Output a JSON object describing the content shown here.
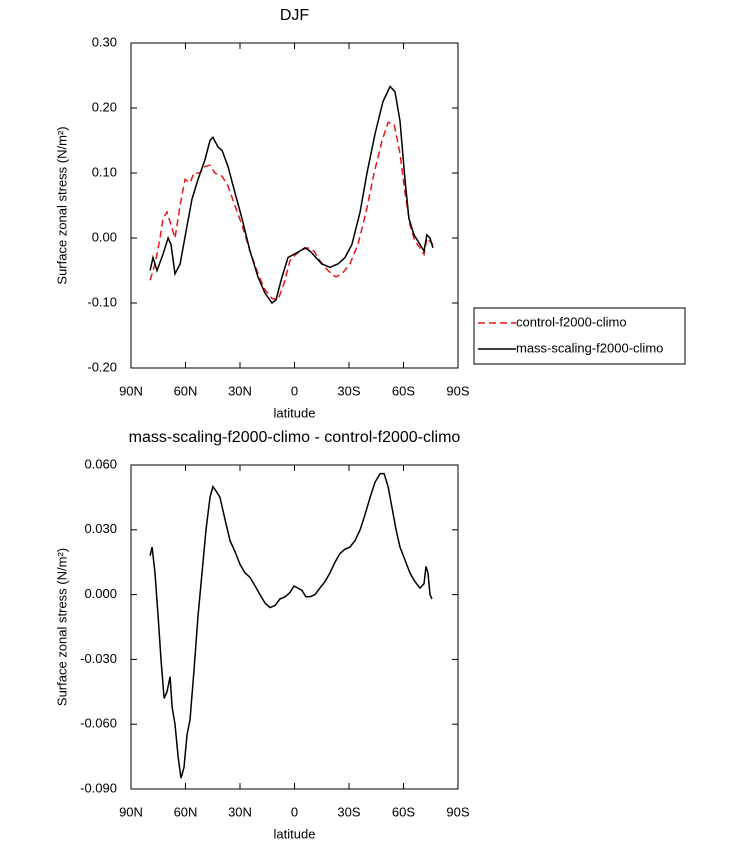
{
  "chart_data": [
    {
      "type": "line",
      "title": "DJF",
      "xlabel": "latitude",
      "ylabel": "Surface zonal stress (N/m²)",
      "xlim": [
        90,
        -90
      ],
      "ylim": [
        -0.2,
        0.3
      ],
      "xticks": [
        {
          "value": 90,
          "label": "90N"
        },
        {
          "value": 60,
          "label": "60N"
        },
        {
          "value": 30,
          "label": "30N"
        },
        0,
        {
          "value": -30,
          "label": "30S"
        },
        {
          "value": -60,
          "label": "60S"
        },
        {
          "value": -90,
          "label": "90S"
        }
      ],
      "yticks": [
        {
          "value": -0.2,
          "label": "-0.20"
        },
        {
          "value": -0.1,
          "label": "-0.10"
        },
        {
          "value": 0,
          "label": "0.00"
        },
        {
          "value": 0.1,
          "label": "0.10"
        },
        {
          "value": 0.2,
          "label": "0.20"
        },
        {
          "value": 0.3,
          "label": "0.30"
        }
      ],
      "legend": "right",
      "series": [
        {
          "name": "control-f2000-climo",
          "color": "#e8171f",
          "dash": true,
          "x": [
            79.5,
            76.8,
            74.0,
            72.4,
            70.2,
            68.0,
            65.8,
            63.0,
            60.3,
            57.5,
            55.3,
            52.0,
            49.3,
            46.5,
            43.8,
            39.9,
            36.6,
            32.8,
            28.9,
            24.5,
            20.1,
            16.2,
            12.4,
            9.1,
            5.8,
            2.5,
            -0.8,
            -4.1,
            -7.4,
            -10.7,
            -14.0,
            -18.4,
            -22.8,
            -26.1,
            -30.5,
            -34.9,
            -39.4,
            -43.8,
            -48.2,
            -51.5,
            -54.8,
            -58.1,
            -60.8,
            -63.6,
            -66.3,
            -69.1,
            -71.3,
            -72.9,
            -74.6,
            -76.2
          ],
          "values": [
            -0.065,
            -0.04,
            0.0,
            0.03,
            0.04,
            0.02,
            0.0,
            0.05,
            0.09,
            0.085,
            0.1,
            0.1,
            0.11,
            0.112,
            0.1,
            0.095,
            0.08,
            0.05,
            0.02,
            -0.02,
            -0.055,
            -0.08,
            -0.093,
            -0.095,
            -0.07,
            -0.035,
            -0.025,
            -0.018,
            -0.015,
            -0.02,
            -0.035,
            -0.05,
            -0.06,
            -0.055,
            -0.04,
            -0.01,
            0.04,
            0.1,
            0.15,
            0.178,
            0.175,
            0.13,
            0.07,
            0.02,
            -0.005,
            -0.015,
            -0.025,
            0.0,
            -0.005,
            -0.01
          ]
        },
        {
          "name": "mass-scaling-f2000-climo",
          "color": "#000000",
          "dash": false,
          "x": [
            79.5,
            77.9,
            75.7,
            72.4,
            69.6,
            68.0,
            65.8,
            63.0,
            59.7,
            56.4,
            53.1,
            49.3,
            46.5,
            44.9,
            42.1,
            39.9,
            36.6,
            32.8,
            28.9,
            24.5,
            20.1,
            16.2,
            12.4,
            10.2,
            6.9,
            3.6,
            0.3,
            -3.0,
            -5.8,
            -8.5,
            -11.8,
            -15.1,
            -19.5,
            -23.9,
            -27.8,
            -31.6,
            -36.1,
            -39.9,
            -44.3,
            -48.7,
            -52.6,
            -55.3,
            -58.1,
            -60.8,
            -63.0,
            -65.8,
            -69.1,
            -71.3,
            -72.9,
            -74.6,
            -76.2
          ],
          "values": [
            -0.05,
            -0.03,
            -0.05,
            -0.025,
            0.0,
            -0.01,
            -0.055,
            -0.04,
            0.01,
            0.06,
            0.09,
            0.12,
            0.15,
            0.155,
            0.14,
            0.135,
            0.11,
            0.07,
            0.03,
            -0.02,
            -0.06,
            -0.085,
            -0.1,
            -0.095,
            -0.06,
            -0.03,
            -0.025,
            -0.02,
            -0.015,
            -0.02,
            -0.03,
            -0.04,
            -0.045,
            -0.04,
            -0.03,
            -0.01,
            0.04,
            0.1,
            0.16,
            0.21,
            0.233,
            0.225,
            0.18,
            0.09,
            0.03,
            0.005,
            -0.01,
            -0.02,
            0.005,
            0.0,
            -0.015
          ]
        }
      ]
    },
    {
      "type": "line",
      "title": "mass-scaling-f2000-climo - control-f2000-climo",
      "xlabel": "latitude",
      "ylabel": "Surface zonal stress (N/m²)",
      "xlim": [
        90,
        -90
      ],
      "ylim": [
        -0.09,
        0.06
      ],
      "xticks": [
        {
          "value": 90,
          "label": "90N"
        },
        {
          "value": 60,
          "label": "60N"
        },
        {
          "value": 30,
          "label": "30N"
        },
        0,
        {
          "value": -30,
          "label": "30S"
        },
        {
          "value": -60,
          "label": "60S"
        },
        {
          "value": -90,
          "label": "90S"
        }
      ],
      "yticks": [
        {
          "value": -0.09,
          "label": "-0.090"
        },
        {
          "value": -0.06,
          "label": "-0.060"
        },
        {
          "value": -0.03,
          "label": "-0.030"
        },
        {
          "value": 0,
          "label": "0.000"
        },
        {
          "value": 0.03,
          "label": "0.030"
        },
        {
          "value": 0.06,
          "label": "0.060"
        }
      ],
      "series": [
        {
          "color": "#000000",
          "dash": false,
          "x": [
            79.5,
            78.4,
            76.8,
            75.1,
            73.5,
            71.8,
            70.2,
            68.5,
            67.4,
            65.8,
            64.1,
            62.5,
            60.8,
            59.2,
            57.5,
            55.3,
            53.1,
            50.9,
            48.7,
            46.5,
            44.9,
            43.2,
            41.0,
            38.3,
            35.5,
            32.8,
            30.0,
            27.2,
            24.5,
            21.7,
            19.0,
            16.2,
            13.5,
            10.7,
            8.0,
            5.2,
            2.5,
            0.3,
            -1.9,
            -4.1,
            -6.3,
            -8.5,
            -11.3,
            -14.0,
            -16.8,
            -19.5,
            -22.3,
            -25.0,
            -27.8,
            -30.5,
            -33.3,
            -36.1,
            -38.8,
            -41.6,
            -44.3,
            -47.1,
            -49.3,
            -51.5,
            -53.7,
            -55.9,
            -58.1,
            -60.8,
            -63.6,
            -66.3,
            -69.1,
            -71.3,
            -72.4,
            -73.5,
            -74.6,
            -75.7
          ],
          "values": [
            0.018,
            0.022,
            0.01,
            -0.01,
            -0.03,
            -0.048,
            -0.045,
            -0.038,
            -0.052,
            -0.06,
            -0.075,
            -0.085,
            -0.08,
            -0.065,
            -0.058,
            -0.035,
            -0.01,
            0.01,
            0.03,
            0.045,
            0.05,
            0.048,
            0.045,
            0.035,
            0.025,
            0.02,
            0.014,
            0.01,
            0.008,
            0.004,
            0.0,
            -0.004,
            -0.006,
            -0.005,
            -0.002,
            -0.001,
            0.001,
            0.004,
            0.003,
            0.002,
            -0.001,
            -0.001,
            0.0,
            0.003,
            0.006,
            0.01,
            0.015,
            0.019,
            0.021,
            0.022,
            0.025,
            0.03,
            0.037,
            0.045,
            0.052,
            0.056,
            0.056,
            0.05,
            0.04,
            0.03,
            0.022,
            0.016,
            0.01,
            0.006,
            0.003,
            0.005,
            0.013,
            0.01,
            0.0,
            -0.002
          ]
        }
      ]
    }
  ]
}
